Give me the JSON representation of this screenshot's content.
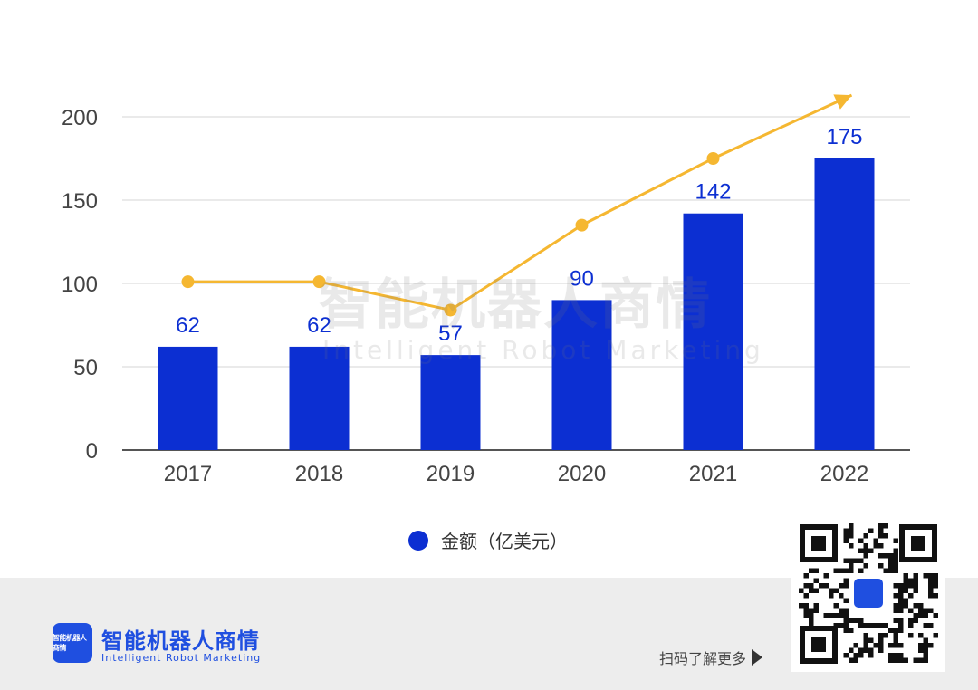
{
  "chart_data": {
    "type": "bar",
    "categories": [
      "2017",
      "2018",
      "2019",
      "2020",
      "2021",
      "2022"
    ],
    "series": [
      {
        "name": "金额（亿美元）",
        "values": [
          62,
          62,
          57,
          90,
          142,
          175
        ],
        "color": "#0c2fd2"
      }
    ],
    "value_labels": [
      "62",
      "62",
      "57",
      "90",
      "142",
      "175"
    ],
    "trend_line": {
      "values": [
        101,
        101,
        84,
        135,
        175,
        213
      ],
      "color": "#f5b731"
    },
    "ylim": [
      0,
      200
    ],
    "yticks": [
      "0",
      "50",
      "100",
      "150",
      "200"
    ],
    "legend_position": "bottom-center",
    "grid": true
  },
  "legend": {
    "label": "金额（亿美元）"
  },
  "watermark": {
    "cn": "智能机器人商情",
    "en": "Intelligent Robot Marketing"
  },
  "footer": {
    "logo_mini": "智能机器人商情",
    "brand_cn": "智能机器人商情",
    "brand_en": "Intelligent Robot Marketing",
    "scan_text": "扫码了解更多"
  },
  "colors": {
    "bar": "#0c2fd2",
    "line": "#f5b731",
    "brand": "#1f4fe0"
  }
}
